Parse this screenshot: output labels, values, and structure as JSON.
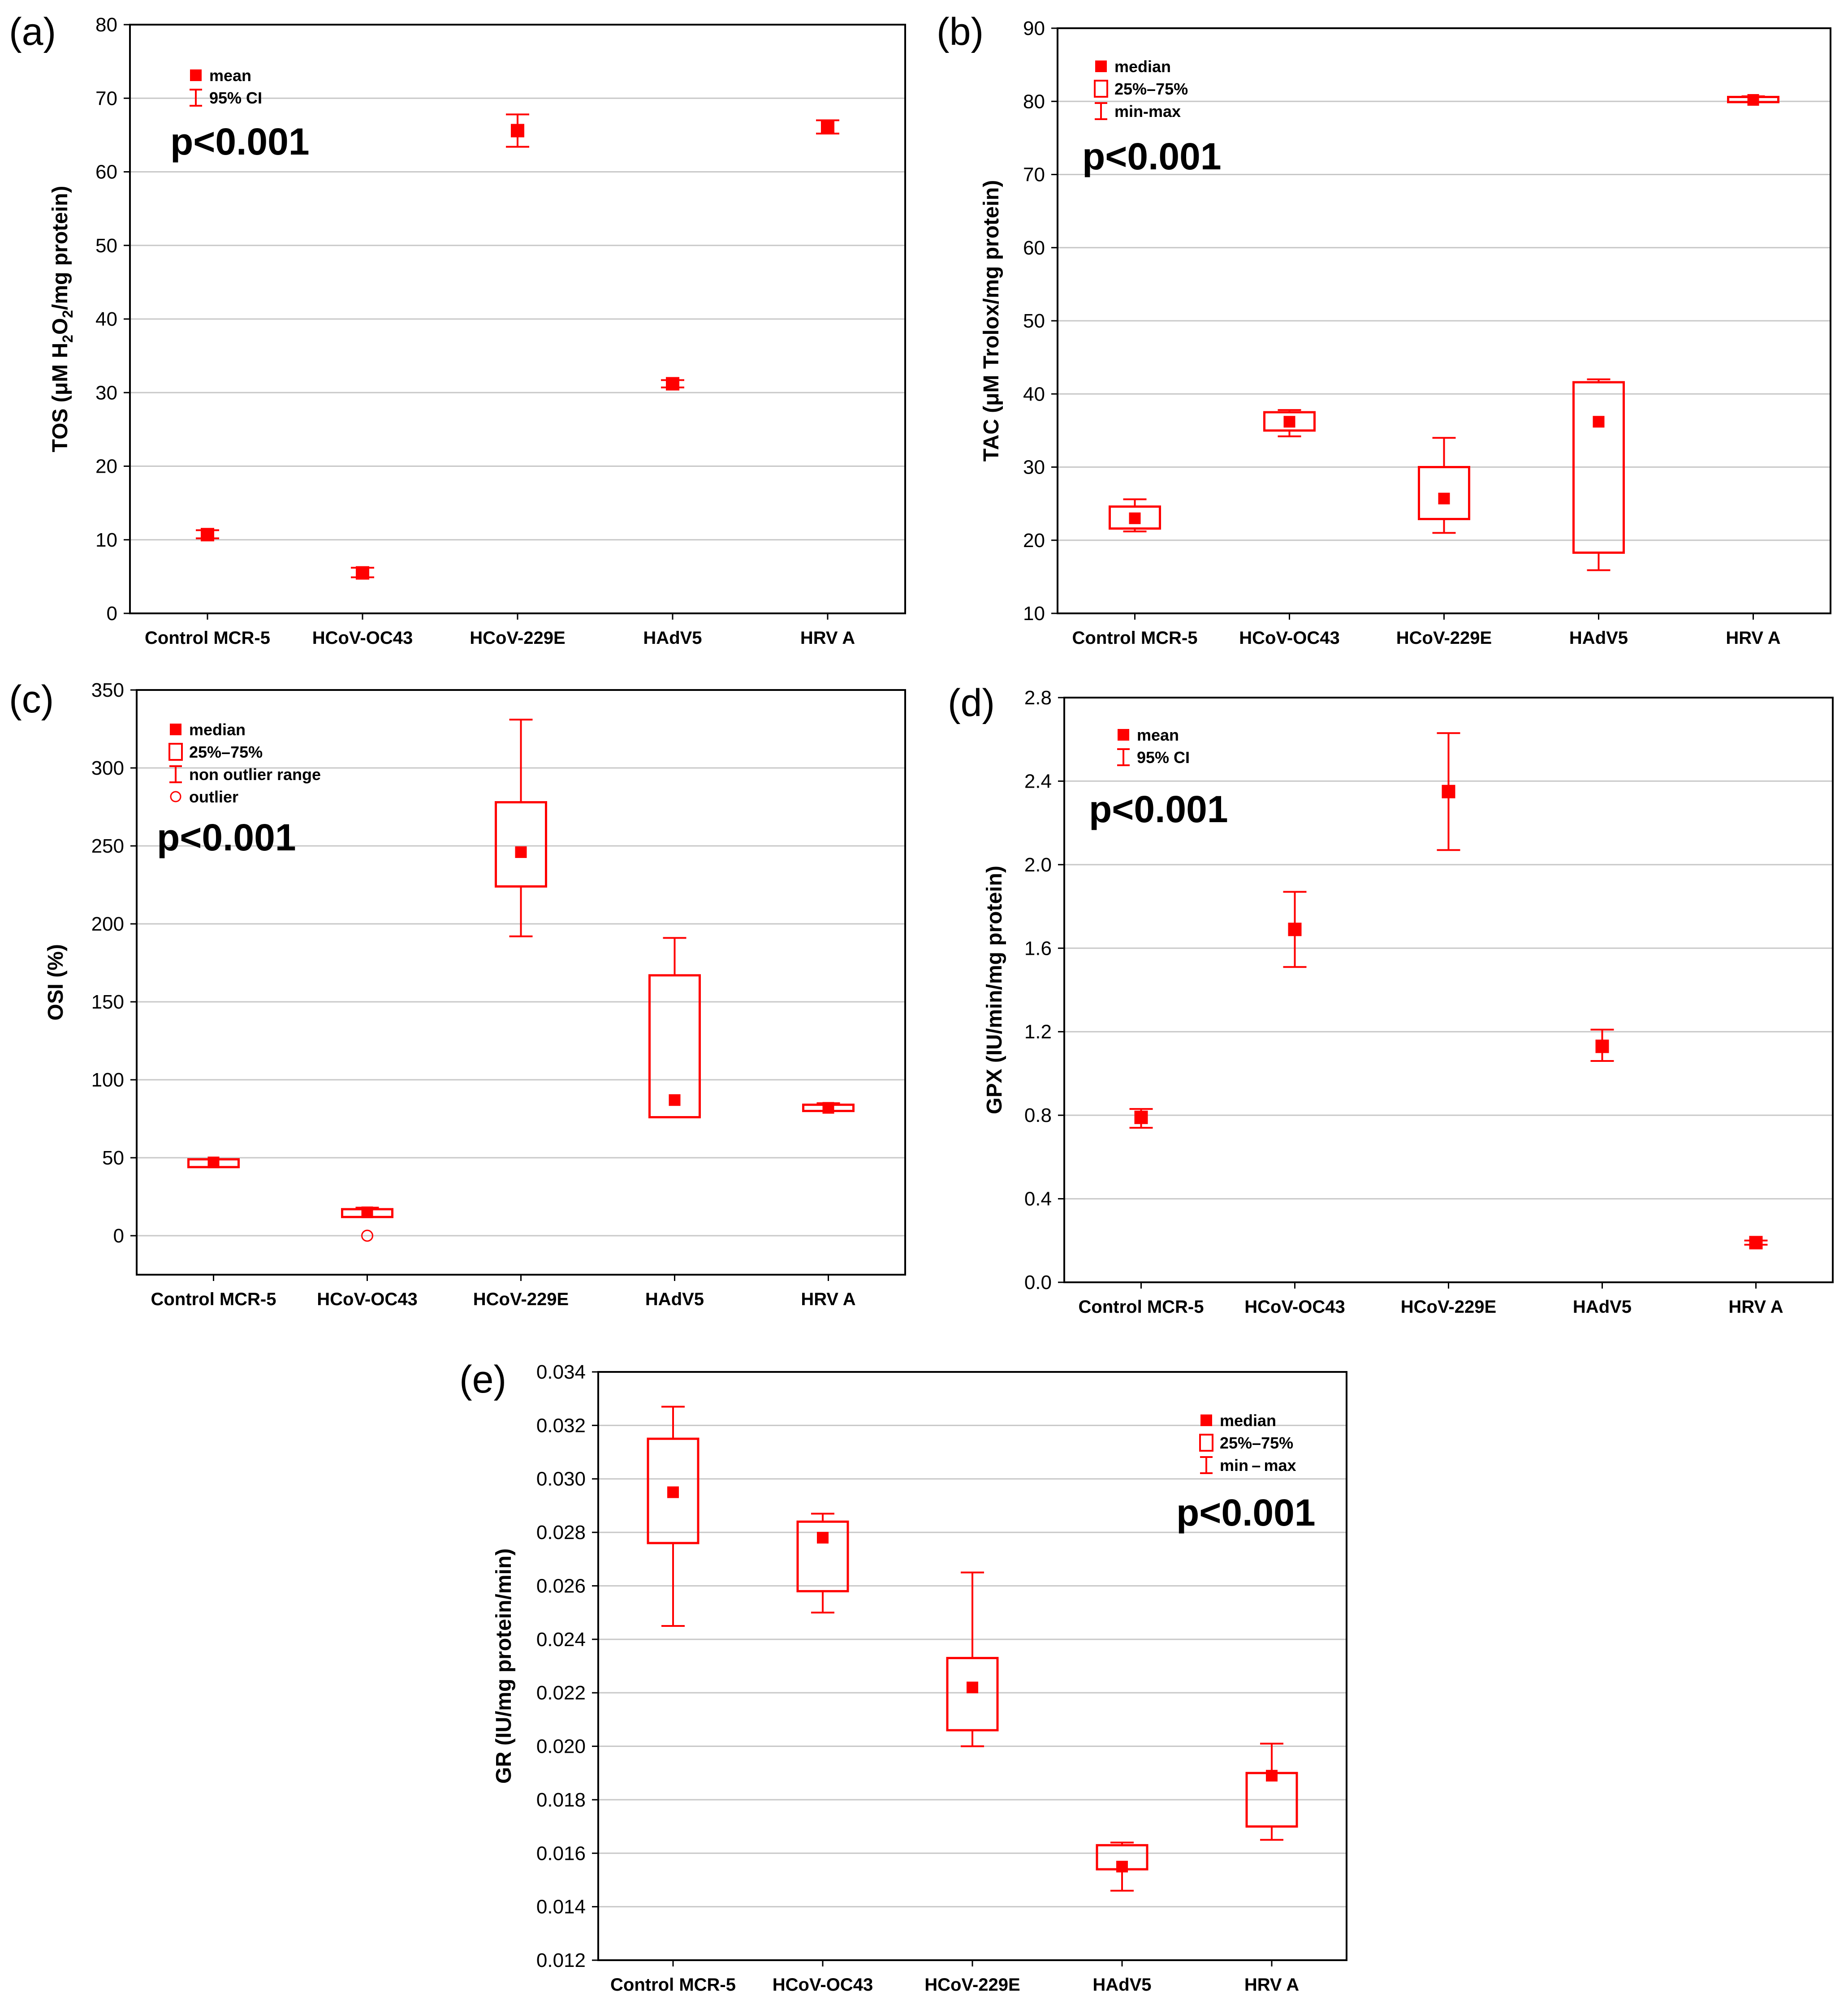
{
  "colors": {
    "series": "#ff0000",
    "grid": "#c8c8c8",
    "axis": "#000000"
  },
  "chart_data": [
    {
      "panel": "(a)",
      "type": "scatter",
      "style": "mean-ci",
      "ylabel_parts": [
        "TOS (",
        "μ",
        "M H",
        "2",
        "O",
        "2",
        "/mg protein)"
      ],
      "ylim": [
        0,
        80
      ],
      "yticks": [
        "0",
        "10",
        "20",
        "30",
        "40",
        "50",
        "60",
        "70",
        "80"
      ],
      "categories": [
        "Control MCR-5",
        "HCoV-OC43",
        "HCoV-229E",
        "HAdV5",
        "HRV A"
      ],
      "pvalue": "p<0.001",
      "legend": [
        "mean",
        "95% CI"
      ],
      "series": [
        {
          "name": "mean",
          "values": [
            10.7,
            5.5,
            65.6,
            31.2,
            66.1
          ],
          "ci_low": [
            10.2,
            4.9,
            63.4,
            30.7,
            65.2
          ],
          "ci_high": [
            11.3,
            6.2,
            67.8,
            31.7,
            67.0
          ]
        }
      ]
    },
    {
      "panel": "(b)",
      "type": "box",
      "style": "median-range",
      "ylabel_parts": [
        "TAC (",
        "μ",
        "M Trolox/mg protein)"
      ],
      "ylim": [
        10,
        90
      ],
      "yticks": [
        "10",
        "20",
        "30",
        "40",
        "50",
        "60",
        "70",
        "80",
        "90"
      ],
      "categories": [
        "Control MCR-5",
        "HCoV-OC43",
        "HCoV-229E",
        "HAdV5",
        "HRV A"
      ],
      "pvalue": "p<0.001",
      "legend": [
        "median",
        "25%–75%",
        "min-max"
      ],
      "series": [
        {
          "name": "median",
          "values": [
            23.0,
            36.2,
            25.7,
            36.2,
            80.2
          ],
          "q1": [
            21.6,
            35.0,
            22.9,
            18.3,
            79.9
          ],
          "q3": [
            24.6,
            37.5,
            30.0,
            41.6,
            80.6
          ],
          "min": [
            21.2,
            34.2,
            21.0,
            15.9,
            79.9
          ],
          "max": [
            25.6,
            37.8,
            34.0,
            42.0,
            80.7
          ]
        }
      ]
    },
    {
      "panel": "(c)",
      "type": "box",
      "style": "median-nonoutlier",
      "ylabel_parts": [
        "OSI (%)"
      ],
      "ylim": [
        -25,
        350
      ],
      "yticks": [
        "0",
        "50",
        "100",
        "150",
        "200",
        "250",
        "300",
        "350"
      ],
      "ytick_values": [
        0,
        50,
        100,
        150,
        200,
        250,
        300,
        350
      ],
      "categories": [
        "Control MCR-5",
        "HCoV-OC43",
        "HCoV-229E",
        "HAdV5",
        "HRV A"
      ],
      "pvalue": "p<0.001",
      "legend": [
        "median",
        "25%–75%",
        "non outlier range",
        "outlier"
      ],
      "series": [
        {
          "name": "median",
          "values": [
            47,
            15,
            246,
            87,
            82
          ],
          "q1": [
            44,
            12,
            224,
            76,
            80
          ],
          "q3": [
            49,
            17,
            278,
            167,
            84
          ],
          "min": [
            44,
            12,
            192,
            76,
            80
          ],
          "max": [
            49,
            18,
            331,
            191,
            85
          ],
          "outliers": [
            null,
            0,
            null,
            null,
            null
          ]
        }
      ]
    },
    {
      "panel": "(d)",
      "type": "scatter",
      "style": "mean-ci",
      "ylabel_parts": [
        "GPX (IU/min/mg protein)"
      ],
      "ylim": [
        0,
        2.8
      ],
      "yticks": [
        "0.0",
        "0.4",
        "0.8",
        "1.2",
        "1.6",
        "2.0",
        "2.4",
        "2.8"
      ],
      "categories": [
        "Control MCR-5",
        "HCoV-OC43",
        "HCoV-229E",
        "HAdV5",
        "HRV A"
      ],
      "pvalue": "p<0.001",
      "legend": [
        "mean",
        "95% CI"
      ],
      "series": [
        {
          "name": "mean",
          "values": [
            0.79,
            1.69,
            2.35,
            1.13,
            0.19
          ],
          "ci_low": [
            0.74,
            1.51,
            2.07,
            1.06,
            0.18
          ],
          "ci_high": [
            0.83,
            1.87,
            2.63,
            1.21,
            0.2
          ]
        }
      ]
    },
    {
      "panel": "(e)",
      "type": "box",
      "style": "median-range",
      "ylabel_parts": [
        "GR (IU/mg protein/min)"
      ],
      "ylim": [
        0.012,
        0.034
      ],
      "yticks": [
        "0.012",
        "0.014",
        "0.016",
        "0.018",
        "0.020",
        "0.022",
        "0.024",
        "0.026",
        "0.028",
        "0.030",
        "0.032",
        "0.034"
      ],
      "categories": [
        "Control MCR-5",
        "HCoV-OC43",
        "HCoV-229E",
        "HAdV5",
        "HRV A"
      ],
      "pvalue": "p<0.001",
      "legend": [
        "median",
        "25%–75%",
        "min – max"
      ],
      "series": [
        {
          "name": "median",
          "values": [
            0.0295,
            0.0278,
            0.0222,
            0.0155,
            0.0189
          ],
          "q1": [
            0.0276,
            0.0258,
            0.0206,
            0.0154,
            0.017
          ],
          "q3": [
            0.0315,
            0.0284,
            0.0233,
            0.0163,
            0.019
          ],
          "min": [
            0.0245,
            0.025,
            0.02,
            0.0146,
            0.0165
          ],
          "max": [
            0.0327,
            0.0287,
            0.0265,
            0.0164,
            0.0201
          ]
        }
      ]
    }
  ]
}
